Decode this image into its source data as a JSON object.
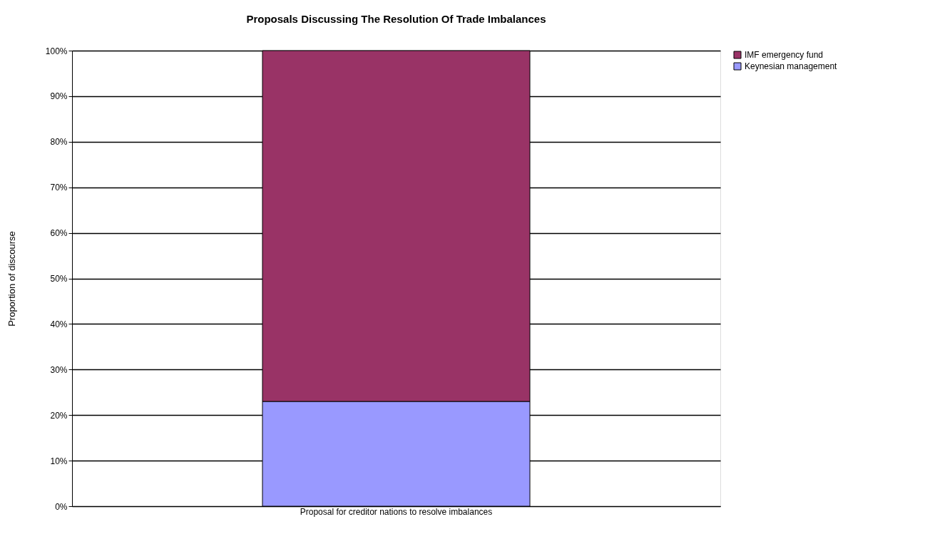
{
  "chart_data": {
    "type": "bar",
    "title": "Proposals Discussing The Resolution Of Trade Imbalances",
    "ylabel": "Proportion of discourse",
    "categories": [
      "Proposal for creditor nations to resolve imbalances"
    ],
    "stacked": true,
    "series": [
      {
        "name": "Keynesian management",
        "color": "#9999ff",
        "values": [
          23
        ]
      },
      {
        "name": "IMF emergency fund",
        "color": "#993366",
        "values": [
          77
        ]
      }
    ],
    "ylim": [
      0,
      100
    ],
    "yticks": [
      {
        "value": 0,
        "label": "0%"
      },
      {
        "value": 10,
        "label": "10%"
      },
      {
        "value": 20,
        "label": "20%"
      },
      {
        "value": 30,
        "label": "30%"
      },
      {
        "value": 40,
        "label": "40%"
      },
      {
        "value": 50,
        "label": "50%"
      },
      {
        "value": 60,
        "label": "60%"
      },
      {
        "value": 70,
        "label": "70%"
      },
      {
        "value": 80,
        "label": "80%"
      },
      {
        "value": 90,
        "label": "90%"
      },
      {
        "value": 100,
        "label": "100%"
      }
    ],
    "grid": "y",
    "legend": "right"
  }
}
